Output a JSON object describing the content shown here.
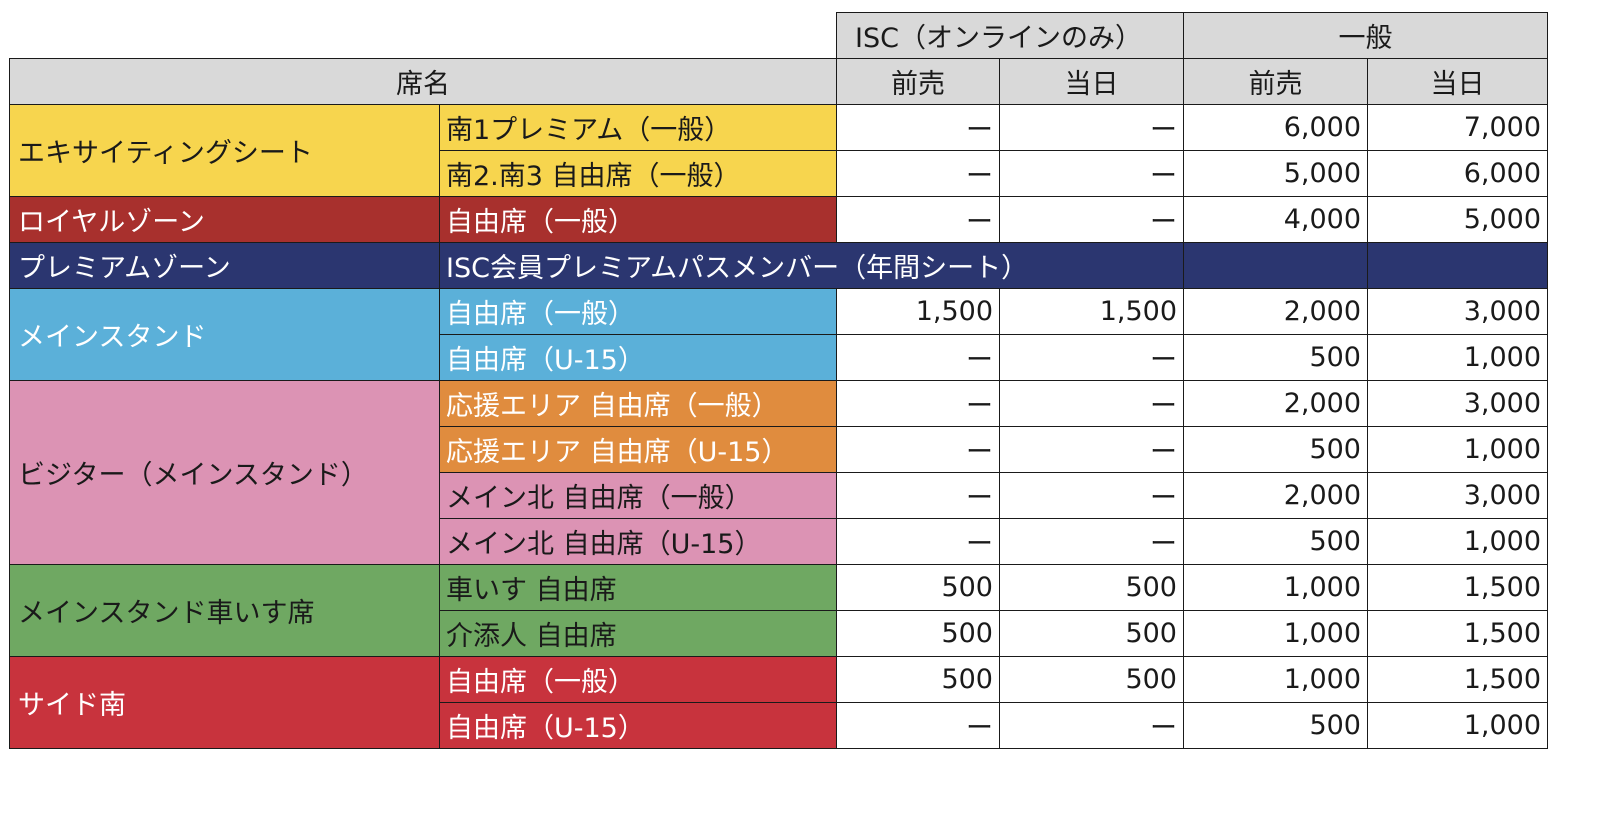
{
  "header": {
    "isc_group": "ISC（オンラインのみ）",
    "general_group": "一般",
    "seat_name": "席名",
    "presale": "前売",
    "sameday": "当日"
  },
  "colors": {
    "header_gray": "#d9d9d9",
    "yellow": "#f7d54e",
    "dark_red": "#a8302d",
    "navy": "#2b3670",
    "sky_blue": "#5bb0d9",
    "pink": "#dc93b4",
    "orange": "#e08c3e",
    "green": "#6fa862",
    "red": "#c8333d"
  },
  "zones": [
    {
      "name": "エキサイティングシート",
      "color": "yellow"
    },
    {
      "name": "ロイヤルゾーン",
      "color": "dark_red"
    },
    {
      "name": "プレミアムゾーン",
      "color": "navy"
    },
    {
      "name": "メインスタンド",
      "color": "sky_blue"
    },
    {
      "name": "ビジター（メインスタンド）",
      "color": "pink"
    },
    {
      "name": "メインスタンド車いす席",
      "color": "green"
    },
    {
      "name": "サイド南",
      "color": "red"
    }
  ],
  "rows": [
    {
      "seat": "南1プレミアム（一般）",
      "isc_presale": "ー",
      "isc_sameday": "ー",
      "gen_presale": "6,000",
      "gen_sameday": "7,000"
    },
    {
      "seat": "南2.南3 自由席（一般）",
      "isc_presale": "ー",
      "isc_sameday": "ー",
      "gen_presale": "5,000",
      "gen_sameday": "6,000"
    },
    {
      "seat": "自由席（一般）",
      "isc_presale": "ー",
      "isc_sameday": "ー",
      "gen_presale": "4,000",
      "gen_sameday": "5,000"
    },
    {
      "seat": "ISC会員プレミアムパスメンバー（年間シート）"
    },
    {
      "seat": "自由席（一般）",
      "isc_presale": "1,500",
      "isc_sameday": "1,500",
      "gen_presale": "2,000",
      "gen_sameday": "3,000"
    },
    {
      "seat": "自由席（U-15）",
      "isc_presale": "ー",
      "isc_sameday": "ー",
      "gen_presale": "500",
      "gen_sameday": "1,000"
    },
    {
      "seat": "応援エリア 自由席（一般）",
      "isc_presale": "ー",
      "isc_sameday": "ー",
      "gen_presale": "2,000",
      "gen_sameday": "3,000"
    },
    {
      "seat": "応援エリア 自由席（U-15）",
      "isc_presale": "ー",
      "isc_sameday": "ー",
      "gen_presale": "500",
      "gen_sameday": "1,000"
    },
    {
      "seat": "メイン北 自由席（一般）",
      "isc_presale": "ー",
      "isc_sameday": "ー",
      "gen_presale": "2,000",
      "gen_sameday": "3,000"
    },
    {
      "seat": "メイン北 自由席（U-15）",
      "isc_presale": "ー",
      "isc_sameday": "ー",
      "gen_presale": "500",
      "gen_sameday": "1,000"
    },
    {
      "seat": "車いす 自由席",
      "isc_presale": "500",
      "isc_sameday": "500",
      "gen_presale": "1,000",
      "gen_sameday": "1,500"
    },
    {
      "seat": "介添人 自由席",
      "isc_presale": "500",
      "isc_sameday": "500",
      "gen_presale": "1,000",
      "gen_sameday": "1,500"
    },
    {
      "seat": "自由席（一般）",
      "isc_presale": "500",
      "isc_sameday": "500",
      "gen_presale": "1,000",
      "gen_sameday": "1,500"
    },
    {
      "seat": "自由席（U-15）",
      "isc_presale": "ー",
      "isc_sameday": "ー",
      "gen_presale": "500",
      "gen_sameday": "1,000"
    }
  ]
}
